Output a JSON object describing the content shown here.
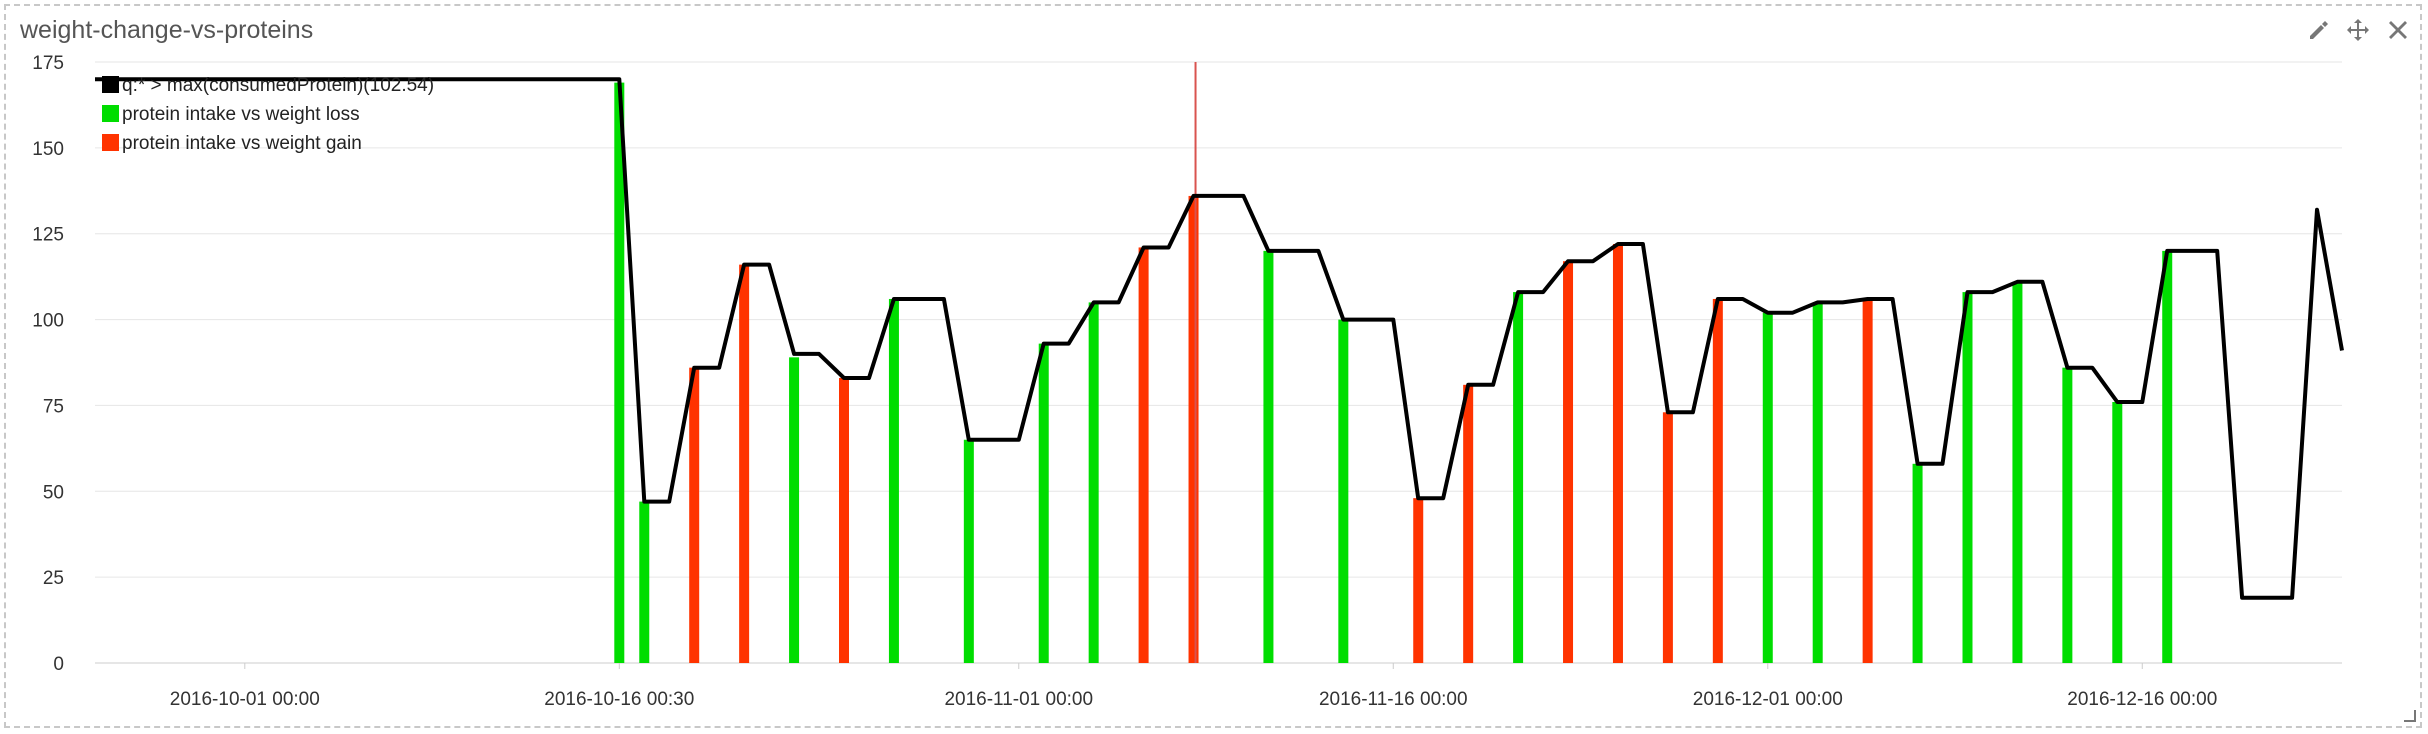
{
  "panel": {
    "title": "weight-change-vs-proteins",
    "icons": [
      "pencil-icon",
      "move-icon",
      "close-icon"
    ]
  },
  "colors": {
    "line": "#000000",
    "loss": "#00dd00",
    "gain": "#ff3300",
    "marker": "#d9534f",
    "grid": "#e6e6e6"
  },
  "chart_data": {
    "type": "bar",
    "title": "",
    "xlabel": "",
    "ylabel": "",
    "ylim": [
      0,
      175
    ],
    "y_ticks": [
      0,
      25,
      50,
      75,
      100,
      125,
      150,
      175
    ],
    "x_ticks": [
      "2016-10-01 00:00",
      "2016-10-16 00:30",
      "2016-11-01 00:00",
      "2016-11-16 00:00",
      "2016-12-01 00:00",
      "2016-12-16 00:00"
    ],
    "x_range": [
      "2016-09-25",
      "2016-12-24"
    ],
    "marker_date": "2016-11-08",
    "grid": true,
    "legend_position": "top-left",
    "line_series": {
      "name": "q:* > max(consumedProtein)(102.54)",
      "color": "#000000",
      "points": [
        [
          "2016-09-25",
          170
        ],
        [
          "2016-10-16",
          170
        ],
        [
          "2016-10-17",
          47
        ],
        [
          "2016-10-18",
          47
        ],
        [
          "2016-10-19",
          86
        ],
        [
          "2016-10-20",
          86
        ],
        [
          "2016-10-21",
          116
        ],
        [
          "2016-10-22",
          116
        ],
        [
          "2016-10-23",
          90
        ],
        [
          "2016-10-24",
          90
        ],
        [
          "2016-10-25",
          83
        ],
        [
          "2016-10-26",
          83
        ],
        [
          "2016-10-27",
          106
        ],
        [
          "2016-10-28",
          106
        ],
        [
          "2016-10-29",
          106
        ],
        [
          "2016-10-30",
          65
        ],
        [
          "2016-10-31",
          65
        ],
        [
          "2016-11-01",
          65
        ],
        [
          "2016-11-02",
          93
        ],
        [
          "2016-11-03",
          93
        ],
        [
          "2016-11-04",
          105
        ],
        [
          "2016-11-05",
          105
        ],
        [
          "2016-11-06",
          121
        ],
        [
          "2016-11-07",
          121
        ],
        [
          "2016-11-08",
          136
        ],
        [
          "2016-11-09",
          136
        ],
        [
          "2016-11-10",
          136
        ],
        [
          "2016-11-11",
          120
        ],
        [
          "2016-11-12",
          120
        ],
        [
          "2016-11-13",
          120
        ],
        [
          "2016-11-14",
          100
        ],
        [
          "2016-11-15",
          100
        ],
        [
          "2016-11-16",
          100
        ],
        [
          "2016-11-17",
          48
        ],
        [
          "2016-11-18",
          48
        ],
        [
          "2016-11-19",
          81
        ],
        [
          "2016-11-20",
          81
        ],
        [
          "2016-11-21",
          108
        ],
        [
          "2016-11-22",
          108
        ],
        [
          "2016-11-23",
          117
        ],
        [
          "2016-11-24",
          117
        ],
        [
          "2016-11-25",
          122
        ],
        [
          "2016-11-26",
          122
        ],
        [
          "2016-11-27",
          73
        ],
        [
          "2016-11-28",
          73
        ],
        [
          "2016-11-29",
          106
        ],
        [
          "2016-11-30",
          106
        ],
        [
          "2016-12-01",
          102
        ],
        [
          "2016-12-02",
          102
        ],
        [
          "2016-12-03",
          105
        ],
        [
          "2016-12-04",
          105
        ],
        [
          "2016-12-05",
          106
        ],
        [
          "2016-12-06",
          106
        ],
        [
          "2016-12-07",
          58
        ],
        [
          "2016-12-08",
          58
        ],
        [
          "2016-12-09",
          108
        ],
        [
          "2016-12-10",
          108
        ],
        [
          "2016-12-11",
          111
        ],
        [
          "2016-12-12",
          111
        ],
        [
          "2016-12-13",
          86
        ],
        [
          "2016-12-14",
          86
        ],
        [
          "2016-12-15",
          76
        ],
        [
          "2016-12-16",
          76
        ],
        [
          "2016-12-17",
          120
        ],
        [
          "2016-12-18",
          120
        ],
        [
          "2016-12-19",
          120
        ],
        [
          "2016-12-20",
          19
        ],
        [
          "2016-12-21",
          19
        ],
        [
          "2016-12-22",
          19
        ],
        [
          "2016-12-23",
          132
        ],
        [
          "2016-12-24",
          91
        ]
      ]
    },
    "series": [
      {
        "name": "protein intake vs weight loss",
        "color": "#00dd00",
        "bars": [
          [
            "2016-10-16",
            169
          ],
          [
            "2016-10-17",
            47
          ],
          [
            "2016-10-23",
            89
          ],
          [
            "2016-10-27",
            106
          ],
          [
            "2016-10-30",
            65
          ],
          [
            "2016-11-02",
            93
          ],
          [
            "2016-11-04",
            105
          ],
          [
            "2016-11-11",
            120
          ],
          [
            "2016-11-14",
            100
          ],
          [
            "2016-11-21",
            108
          ],
          [
            "2016-12-01",
            102
          ],
          [
            "2016-12-03",
            105
          ],
          [
            "2016-12-07",
            58
          ],
          [
            "2016-12-09",
            108
          ],
          [
            "2016-12-11",
            111
          ],
          [
            "2016-12-13",
            86
          ],
          [
            "2016-12-15",
            76
          ],
          [
            "2016-12-17",
            120
          ]
        ]
      },
      {
        "name": "protein intake vs weight gain",
        "color": "#ff3300",
        "bars": [
          [
            "2016-10-19",
            86
          ],
          [
            "2016-10-21",
            116
          ],
          [
            "2016-10-25",
            83
          ],
          [
            "2016-11-06",
            121
          ],
          [
            "2016-11-08",
            136
          ],
          [
            "2016-11-17",
            48
          ],
          [
            "2016-11-19",
            81
          ],
          [
            "2016-11-23",
            117
          ],
          [
            "2016-11-25",
            122
          ],
          [
            "2016-11-27",
            73
          ],
          [
            "2016-11-29",
            106
          ],
          [
            "2016-12-05",
            106
          ]
        ]
      }
    ]
  }
}
